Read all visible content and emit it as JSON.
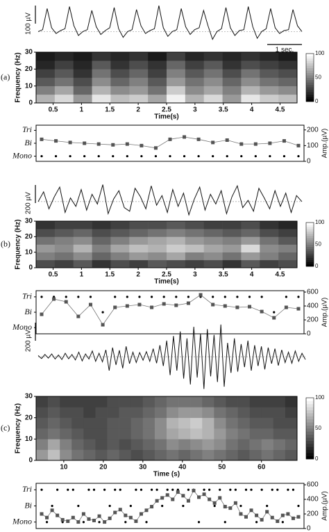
{
  "chart_data": [
    {
      "type": "line",
      "color": "#111",
      "ylim": [
        -60,
        150
      ],
      "scale_label": "100 µV",
      "time_scale_label": "1 sec.",
      "values": [
        0,
        10,
        120,
        20,
        -10,
        5,
        15,
        130,
        30,
        -20,
        0,
        10,
        110,
        25,
        -15,
        5,
        20,
        125,
        15,
        -30,
        0,
        10,
        115,
        30,
        -10,
        5,
        15,
        135,
        20,
        -25,
        0,
        10,
        120,
        25,
        -15,
        10,
        20,
        110,
        30,
        -40,
        0,
        15,
        125,
        20,
        -20,
        5,
        10,
        130,
        25,
        -35,
        0,
        15,
        120,
        20,
        -10,
        5,
        10,
        115,
        30,
        0
      ]
    },
    {
      "type": "heatmap",
      "panel_label": "(a)",
      "xlabel": "Time(s)",
      "ylabel": "Frequency (Hz)",
      "xlim": [
        0.2,
        4.8
      ],
      "xticks": [
        0.5,
        1,
        1.5,
        2,
        2.5,
        3,
        3.5,
        4,
        4.5
      ],
      "ylim": [
        0,
        30
      ],
      "yticks": [
        0,
        10,
        20,
        30
      ],
      "zlim": [
        0,
        100
      ],
      "zticks": [
        0,
        50,
        100
      ],
      "z": [
        [
          70,
          85,
          60,
          90,
          75,
          80,
          65,
          95,
          70,
          85,
          60,
          90,
          80,
          75
        ],
        [
          50,
          65,
          40,
          70,
          55,
          60,
          45,
          80,
          55,
          65,
          50,
          70,
          60,
          55
        ],
        [
          35,
          45,
          30,
          55,
          40,
          50,
          35,
          60,
          45,
          55,
          40,
          55,
          45,
          40
        ],
        [
          25,
          35,
          20,
          45,
          30,
          40,
          25,
          50,
          35,
          45,
          30,
          45,
          35,
          30
        ],
        [
          15,
          25,
          15,
          35,
          20,
          30,
          20,
          40,
          25,
          35,
          20,
          30,
          25,
          20
        ],
        [
          10,
          15,
          10,
          20,
          15,
          20,
          10,
          25,
          15,
          20,
          15,
          20,
          15,
          10
        ]
      ]
    },
    {
      "type": "state",
      "ylim": [
        0.6,
        3.4
      ],
      "yticks": [
        {
          "value": 1,
          "label": "Mono"
        },
        {
          "value": 2,
          "label": "Bi"
        },
        {
          "value": 3,
          "label": "Tri"
        }
      ],
      "y2lim": [
        0,
        230
      ],
      "y2ticks": [
        0,
        100,
        200
      ],
      "y2label": "Amp.(µV)",
      "series": [
        {
          "color": "#000",
          "marker": "circle",
          "values": [
            1,
            1,
            1,
            1,
            1,
            1,
            1,
            1,
            1,
            1,
            1,
            1,
            1,
            1,
            1,
            1,
            1,
            1,
            1
          ]
        },
        {
          "color": "#555",
          "marker": "square",
          "axis": "y2",
          "values": [
            140,
            130,
            120,
            115,
            110,
            105,
            110,
            100,
            85,
            140,
            155,
            140,
            120,
            135,
            110,
            110,
            115,
            130,
            100
          ]
        }
      ]
    },
    {
      "type": "line",
      "color": "#111",
      "ylim": [
        -150,
        160
      ],
      "scale_label": "200 µV",
      "values": [
        0,
        80,
        -60,
        40,
        120,
        -90,
        30,
        -40,
        100,
        -70,
        60,
        -20,
        140,
        -100,
        20,
        90,
        -50,
        -80,
        110,
        40,
        -60,
        130,
        -30,
        50,
        -90,
        100,
        -40,
        70,
        -110,
        20,
        120,
        -70,
        60,
        -20,
        90,
        -100,
        40,
        130,
        -50,
        10,
        -80,
        110,
        30,
        -60,
        90,
        -40,
        70,
        -90,
        50,
        0
      ]
    },
    {
      "type": "heatmap",
      "panel_label": "(b)",
      "xlabel": "Time(s)",
      "ylabel": "Frequency (Hz)",
      "xlim": [
        0.2,
        4.8
      ],
      "xticks": [
        0.5,
        1,
        1.5,
        2,
        2.5,
        3,
        3.5,
        4,
        4.5
      ],
      "ylim": [
        0,
        30
      ],
      "yticks": [
        0,
        10,
        20,
        30
      ],
      "zlim": [
        0,
        100
      ],
      "zticks": [
        0,
        50,
        100
      ],
      "z": [
        [
          30,
          25,
          35,
          20,
          30,
          25,
          35,
          30,
          25,
          30,
          20,
          35,
          25,
          30
        ],
        [
          50,
          45,
          55,
          40,
          50,
          60,
          55,
          65,
          50,
          55,
          45,
          60,
          50,
          40
        ],
        [
          60,
          55,
          70,
          50,
          65,
          75,
          70,
          80,
          75,
          65,
          60,
          85,
          55,
          50
        ],
        [
          45,
          50,
          55,
          40,
          50,
          60,
          65,
          70,
          60,
          55,
          50,
          60,
          45,
          35
        ],
        [
          30,
          35,
          40,
          30,
          35,
          40,
          45,
          50,
          45,
          40,
          35,
          40,
          30,
          25
        ],
        [
          20,
          25,
          25,
          20,
          25,
          30,
          30,
          35,
          30,
          25,
          25,
          30,
          20,
          15
        ]
      ]
    },
    {
      "type": "state",
      "ylim": [
        0.6,
        3.4
      ],
      "yticks": [
        {
          "value": 1,
          "label": "Mono"
        },
        {
          "value": 2,
          "label": "Bi"
        },
        {
          "value": 3,
          "label": "Tri"
        }
      ],
      "y2lim": [
        0,
        620
      ],
      "y2ticks": [
        0,
        200,
        400,
        600
      ],
      "y2label": "Amp.(µV)",
      "series": [
        {
          "color": "#000",
          "marker": "circle",
          "values": [
            3,
            3,
            3,
            3,
            3,
            2,
            3,
            3,
            3,
            3,
            3,
            3,
            3,
            3,
            3,
            3,
            3,
            3,
            3,
            2,
            3,
            3
          ]
        },
        {
          "color": "#555",
          "marker": "square",
          "axis": "y2",
          "values": [
            280,
            500,
            460,
            250,
            420,
            130,
            380,
            400,
            420,
            380,
            430,
            410,
            440,
            560,
            420,
            400,
            380,
            390,
            320,
            230,
            380,
            360
          ]
        }
      ]
    },
    {
      "type": "line",
      "color": "#111",
      "ylim": [
        -160,
        160
      ],
      "scale_label": "200 µV",
      "values": [
        5,
        -8,
        10,
        -6,
        12,
        -10,
        8,
        -12,
        15,
        -9,
        10,
        -14,
        20,
        -18,
        12,
        -10,
        25,
        -20,
        15,
        -22,
        30,
        -60,
        40,
        -35,
        28,
        -50,
        45,
        -30,
        20,
        -25,
        18,
        -15,
        22,
        -20,
        35,
        -28,
        50,
        -40,
        70,
        -80,
        90,
        -60,
        110,
        -95,
        80,
        -120,
        130,
        -90,
        100,
        -140,
        120,
        -85,
        95,
        -110,
        140,
        -130,
        60,
        -70,
        80,
        -65,
        55,
        -45,
        70,
        -60,
        50,
        -40,
        45,
        -55,
        40,
        -30,
        35,
        -38,
        30,
        -25,
        20,
        -28,
        25,
        -20,
        15,
        -12
      ]
    },
    {
      "type": "heatmap",
      "panel_label": "(c)",
      "xlabel": "Time (s)",
      "ylabel": "Frequency (Hz)",
      "xlim": [
        3,
        69
      ],
      "xticks": [
        10,
        20,
        30,
        40,
        50,
        60
      ],
      "ylim": [
        0,
        30
      ],
      "yticks": [
        0,
        10,
        20,
        30
      ],
      "zlim": [
        0,
        100
      ],
      "zticks": [
        0,
        50,
        100
      ],
      "z": [
        [
          60,
          75,
          55,
          45,
          40,
          35,
          40,
          35,
          30,
          35,
          40,
          45,
          40,
          45,
          50,
          45,
          40,
          35,
          40,
          45,
          40,
          35
        ],
        [
          50,
          65,
          50,
          40,
          35,
          30,
          35,
          30,
          35,
          40,
          45,
          55,
          50,
          55,
          60,
          55,
          45,
          40,
          45,
          50,
          45,
          40
        ],
        [
          40,
          45,
          40,
          35,
          30,
          30,
          35,
          35,
          40,
          45,
          55,
          65,
          70,
          75,
          70,
          60,
          50,
          45,
          40,
          40,
          35,
          35
        ],
        [
          35,
          40,
          35,
          30,
          30,
          30,
          35,
          35,
          40,
          45,
          55,
          70,
          75,
          80,
          70,
          55,
          45,
          40,
          35,
          35,
          30,
          30
        ],
        [
          30,
          35,
          30,
          30,
          25,
          30,
          30,
          35,
          35,
          40,
          45,
          55,
          60,
          60,
          55,
          45,
          40,
          35,
          30,
          30,
          30,
          25
        ],
        [
          25,
          30,
          25,
          25,
          25,
          25,
          30,
          30,
          30,
          35,
          40,
          45,
          45,
          45,
          40,
          35,
          30,
          30,
          25,
          25,
          25,
          20
        ]
      ]
    },
    {
      "type": "state",
      "ylim": [
        0.6,
        3.4
      ],
      "yticks": [
        {
          "value": 1,
          "label": "Mono"
        },
        {
          "value": 2,
          "label": "Bi"
        },
        {
          "value": 3,
          "label": "Tri"
        }
      ],
      "y2lim": [
        0,
        620
      ],
      "y2ticks": [
        0,
        200,
        400,
        600
      ],
      "y2label": "Amp.(µV)",
      "series": [
        {
          "color": "#000",
          "marker": "circle",
          "values": [
            3,
            1,
            2,
            3,
            1,
            3,
            3,
            2,
            1,
            3,
            3,
            1,
            3,
            2,
            3,
            3,
            1,
            2,
            3,
            3,
            1,
            3,
            3,
            2,
            3,
            3,
            3,
            2,
            3,
            3,
            1,
            3,
            3,
            2,
            3,
            1,
            3,
            3,
            2,
            3,
            3,
            1,
            3,
            2,
            3,
            3,
            1,
            3,
            3,
            2
          ]
        },
        {
          "color": "#555",
          "marker": "square",
          "axis": "y2",
          "values": [
            200,
            150,
            250,
            180,
            120,
            100,
            150,
            90,
            200,
            130,
            110,
            170,
            90,
            140,
            220,
            260,
            180,
            150,
            100,
            200,
            250,
            300,
            380,
            420,
            460,
            400,
            500,
            450,
            380,
            520,
            430,
            470,
            400,
            350,
            420,
            300,
            280,
            350,
            200,
            160,
            250,
            180,
            120,
            230,
            150,
            100,
            180,
            200,
            140,
            160
          ]
        }
      ]
    }
  ]
}
